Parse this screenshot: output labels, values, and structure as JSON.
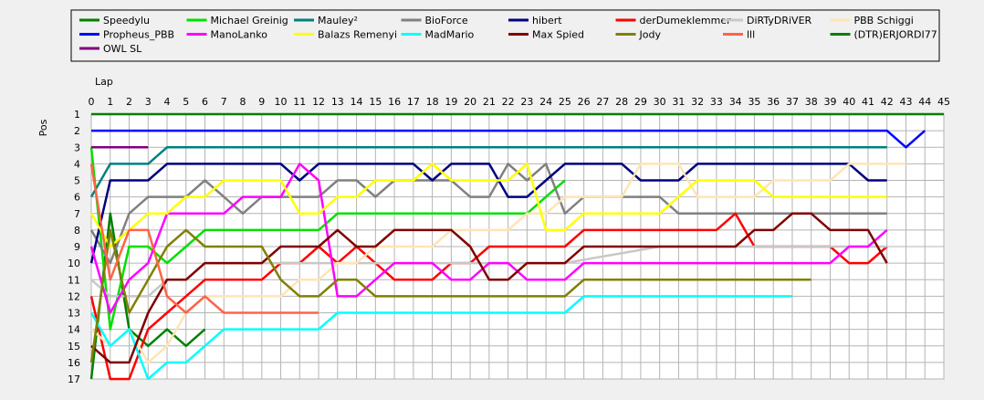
{
  "chart_data": {
    "type": "line",
    "title": "",
    "xlabel": "Lap",
    "ylabel": "Pos",
    "xlim": [
      0,
      45
    ],
    "ylim": [
      1,
      17
    ],
    "x_ticks": [
      0,
      1,
      2,
      3,
      4,
      5,
      6,
      7,
      8,
      9,
      10,
      11,
      12,
      13,
      14,
      15,
      16,
      17,
      18,
      19,
      20,
      21,
      22,
      23,
      24,
      25,
      26,
      27,
      28,
      29,
      30,
      31,
      32,
      33,
      34,
      35,
      36,
      37,
      38,
      39,
      40,
      41,
      42,
      43,
      44,
      45
    ],
    "y_ticks": [
      1,
      2,
      3,
      4,
      5,
      6,
      7,
      8,
      9,
      10,
      11,
      12,
      13,
      14,
      15,
      16,
      17
    ],
    "y_inverted": true,
    "grid": true,
    "legend_position": "top",
    "series": [
      {
        "name": "Speedylu",
        "color": "#008000",
        "x": [
          0,
          1,
          2,
          3,
          4,
          5,
          6
        ],
        "values": [
          17,
          7,
          14,
          15,
          14,
          15,
          14
        ]
      },
      {
        "name": "Michael Greinig",
        "color": "#00e000",
        "x": [
          0,
          1,
          2,
          3,
          4,
          5,
          6,
          7,
          8,
          9,
          10,
          11,
          12,
          13,
          14,
          15,
          16,
          17,
          18,
          19,
          20,
          21,
          22,
          23,
          24,
          25
        ],
        "values": [
          3,
          14,
          9,
          9,
          10,
          9,
          8,
          8,
          8,
          8,
          8,
          8,
          8,
          7,
          7,
          7,
          7,
          7,
          7,
          7,
          7,
          7,
          7,
          7,
          6,
          5
        ]
      },
      {
        "name": "Mauley²",
        "color": "#008080",
        "x": [
          0,
          1,
          2,
          3,
          4,
          5,
          10,
          20,
          30,
          40,
          42
        ],
        "values": [
          6,
          4,
          4,
          4,
          3,
          3,
          3,
          3,
          3,
          3,
          3
        ]
      },
      {
        "name": "BioForce",
        "color": "#808080",
        "x": [
          0,
          1,
          2,
          3,
          4,
          5,
          6,
          7,
          8,
          9,
          10,
          11,
          12,
          13,
          14,
          15,
          16,
          17,
          18,
          19,
          20,
          21,
          22,
          23,
          24,
          25,
          26,
          27,
          28,
          29,
          30,
          31,
          32,
          33,
          34,
          35,
          36,
          37,
          38,
          39,
          40,
          41,
          42
        ],
        "values": [
          8,
          10,
          7,
          6,
          6,
          6,
          5,
          6,
          7,
          6,
          6,
          6,
          6,
          5,
          5,
          6,
          5,
          5,
          5,
          5,
          6,
          6,
          4,
          5,
          4,
          7,
          6,
          6,
          6,
          6,
          6,
          7,
          7,
          7,
          7,
          7,
          7,
          7,
          7,
          7,
          7,
          7,
          7
        ]
      },
      {
        "name": "hibert",
        "color": "#000080",
        "x": [
          0,
          1,
          2,
          3,
          4,
          5,
          10,
          11,
          12,
          17,
          18,
          19,
          20,
          21,
          22,
          23,
          24,
          25,
          28,
          29,
          30,
          31,
          32,
          40,
          41,
          42
        ],
        "values": [
          10,
          5,
          5,
          5,
          4,
          4,
          4,
          5,
          4,
          4,
          5,
          4,
          4,
          4,
          6,
          6,
          5,
          4,
          4,
          5,
          5,
          5,
          4,
          4,
          5,
          5
        ]
      },
      {
        "name": "derDumeklemmer",
        "color": "#ff0000",
        "x": [
          0,
          1,
          2,
          3,
          4,
          5,
          6,
          7,
          8,
          9,
          10,
          11,
          12,
          13,
          14,
          15,
          16,
          17,
          18,
          19,
          20,
          21,
          22,
          23,
          24,
          25,
          26,
          27,
          28,
          29,
          30,
          31,
          32,
          33,
          34,
          35,
          36,
          37,
          38,
          39,
          40,
          41,
          42
        ],
        "values": [
          12,
          17,
          17,
          14,
          13,
          12,
          11,
          11,
          11,
          11,
          10,
          10,
          9,
          10,
          9,
          10,
          11,
          11,
          11,
          10,
          10,
          9,
          9,
          9,
          9,
          9,
          8,
          8,
          8,
          8,
          8,
          8,
          8,
          8,
          7,
          9,
          9,
          9,
          9,
          9,
          10,
          10,
          9
        ]
      },
      {
        "name": "DiRTyDRiVER",
        "color": "#c8c8c8",
        "x": [
          0,
          1,
          2,
          3,
          4,
          5,
          6,
          10,
          13,
          20,
          25,
          30,
          35,
          40,
          42
        ],
        "values": [
          11,
          12,
          12,
          12,
          11,
          11,
          10,
          10,
          10,
          10,
          10,
          9,
          9,
          9,
          9
        ]
      },
      {
        "name": "PBB Schiggi",
        "color": "#ffe4b5",
        "x": [
          0,
          1,
          2,
          3,
          4,
          5,
          6,
          7,
          8,
          9,
          10,
          11,
          12,
          13,
          14,
          15,
          16,
          17,
          18,
          19,
          20,
          21,
          22,
          23,
          24,
          25,
          26,
          27,
          28,
          29,
          30,
          31,
          32,
          33,
          34,
          35,
          36,
          37,
          38,
          39,
          40,
          41,
          42,
          43
        ],
        "values": [
          14,
          15,
          14,
          16,
          15,
          13,
          12,
          12,
          12,
          12,
          12,
          11,
          11,
          10,
          10,
          9,
          9,
          9,
          9,
          8,
          8,
          8,
          8,
          7,
          7,
          6,
          6,
          6,
          6,
          4,
          4,
          4,
          6,
          6,
          6,
          6,
          5,
          5,
          5,
          5,
          4,
          4,
          4,
          4
        ]
      },
      {
        "name": "Propheus_PBB",
        "color": "#0000ff",
        "x": [
          0,
          42,
          43,
          44
        ],
        "values": [
          2,
          2,
          3,
          2
        ]
      },
      {
        "name": "ManoLanko",
        "color": "#ff00ff",
        "x": [
          0,
          1,
          2,
          3,
          4,
          5,
          6,
          7,
          8,
          9,
          10,
          11,
          12,
          13,
          14,
          15,
          16,
          17,
          18,
          19,
          20,
          21,
          22,
          23,
          24,
          25,
          26,
          27,
          28,
          29,
          30,
          31,
          32,
          33,
          34,
          35,
          36,
          37,
          38,
          39,
          40,
          41,
          42
        ],
        "values": [
          9,
          13,
          11,
          10,
          7,
          7,
          7,
          7,
          6,
          6,
          6,
          4,
          5,
          12,
          12,
          11,
          10,
          10,
          10,
          11,
          11,
          10,
          10,
          11,
          11,
          11,
          10,
          10,
          10,
          10,
          10,
          10,
          10,
          10,
          10,
          10,
          10,
          10,
          10,
          10,
          9,
          9,
          8
        ]
      },
      {
        "name": "Balazs Remenyi",
        "color": "#ffff00",
        "x": [
          0,
          1,
          2,
          3,
          4,
          5,
          6,
          7,
          8,
          9,
          10,
          11,
          12,
          13,
          14,
          15,
          16,
          17,
          18,
          19,
          20,
          21,
          22,
          23,
          24,
          25,
          26,
          27,
          28,
          29,
          30,
          31,
          32,
          33,
          34,
          35,
          36,
          37,
          38,
          39,
          40,
          41,
          42
        ],
        "values": [
          7,
          9,
          8,
          7,
          7,
          6,
          6,
          5,
          5,
          5,
          5,
          7,
          7,
          6,
          6,
          5,
          5,
          5,
          4,
          5,
          5,
          5,
          5,
          4,
          8,
          8,
          7,
          7,
          7,
          7,
          7,
          6,
          5,
          5,
          5,
          5,
          6,
          6,
          6,
          6,
          6,
          6,
          6
        ]
      },
      {
        "name": "MadMario",
        "color": "#00ffff",
        "x": [
          0,
          1,
          2,
          3,
          4,
          5,
          6,
          7,
          8,
          9,
          10,
          11,
          12,
          13,
          14,
          15,
          16,
          17,
          18,
          19,
          20,
          21,
          22,
          23,
          24,
          25,
          26,
          27,
          28,
          29,
          30,
          31,
          32,
          33,
          34,
          35,
          36,
          37
        ],
        "values": [
          13,
          15,
          14,
          17,
          16,
          16,
          15,
          14,
          14,
          14,
          14,
          14,
          14,
          13,
          13,
          13,
          13,
          13,
          13,
          13,
          13,
          13,
          13,
          13,
          13,
          13,
          12,
          12,
          12,
          12,
          12,
          12,
          12,
          12,
          12,
          12,
          12,
          12
        ]
      },
      {
        "name": "Max Spied",
        "color": "#800000",
        "x": [
          0,
          1,
          2,
          3,
          4,
          5,
          6,
          7,
          8,
          9,
          10,
          11,
          12,
          13,
          14,
          15,
          16,
          17,
          18,
          19,
          20,
          21,
          22,
          23,
          24,
          25,
          26,
          27,
          28,
          29,
          30,
          31,
          32,
          33,
          34,
          35,
          36,
          37,
          38,
          39,
          40,
          41,
          42
        ],
        "values": [
          15,
          16,
          16,
          13,
          11,
          11,
          10,
          10,
          10,
          10,
          9,
          9,
          9,
          8,
          9,
          9,
          8,
          8,
          8,
          8,
          9,
          11,
          11,
          10,
          10,
          10,
          9,
          9,
          9,
          9,
          9,
          9,
          9,
          9,
          9,
          8,
          8,
          7,
          7,
          8,
          8,
          8,
          10
        ]
      },
      {
        "name": "Jody",
        "color": "#808000",
        "x": [
          0,
          1,
          2,
          3,
          4,
          5,
          6,
          7,
          8,
          9,
          10,
          11,
          12,
          13,
          14,
          15,
          16,
          17,
          18,
          19,
          20,
          21,
          22,
          23,
          24,
          25,
          26,
          27,
          28,
          29,
          30,
          31,
          32,
          33,
          34,
          35,
          36,
          37,
          38
        ],
        "values": [
          16,
          8,
          13,
          11,
          9,
          8,
          9,
          9,
          9,
          9,
          11,
          12,
          12,
          11,
          11,
          12,
          12,
          12,
          12,
          12,
          12,
          12,
          12,
          12,
          12,
          12,
          11,
          11,
          11,
          11,
          11,
          11,
          11,
          11,
          11,
          11,
          11,
          11,
          11
        ]
      },
      {
        "name": "lll",
        "color": "#ff6347",
        "x": [
          0,
          1,
          2,
          3,
          4,
          5,
          6,
          7,
          8,
          9,
          10,
          11,
          12
        ],
        "values": [
          4,
          11,
          8,
          8,
          12,
          13,
          12,
          13,
          13,
          13,
          13,
          13,
          13
        ]
      },
      {
        "name": "(DTR)ERJORDI77",
        "color": "#008000",
        "x": [
          0,
          45
        ],
        "values": [
          1,
          1
        ]
      },
      {
        "name": "OWL SL",
        "color": "#800080",
        "x": [
          0,
          1,
          2,
          3
        ],
        "values": [
          3,
          3,
          3,
          3
        ]
      }
    ]
  }
}
